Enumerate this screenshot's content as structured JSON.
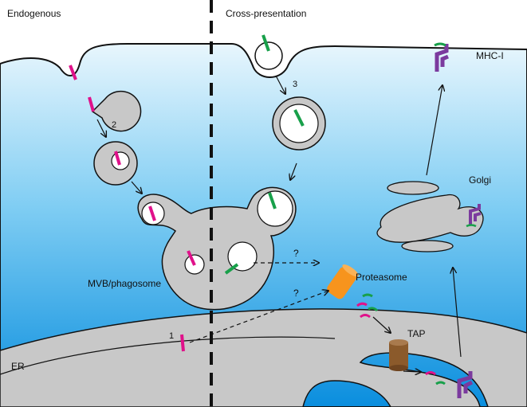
{
  "header": {
    "left_title": "Endogenous",
    "right_title": "Cross-presentation"
  },
  "labels": {
    "mhc": "MHC-I",
    "golgi": "Golgi",
    "proteasome": "Proteasome",
    "tap": "TAP",
    "mvb": "MVB/phagosome",
    "er": "ER"
  },
  "steps": {
    "one": "1",
    "two": "2",
    "three": "3",
    "q_upper": "?",
    "q_lower": "?"
  },
  "colors": {
    "cell_top": "#e8f6fd",
    "cell_bottom": "#0a8ede",
    "organelle": "#c8c8c8",
    "endogenous_peptide": "#e0118a",
    "exogenous_peptide": "#18a04a",
    "mhc": "#7b3a9e",
    "proteasome": "#f7941d",
    "tap": "#8b5a2b"
  }
}
